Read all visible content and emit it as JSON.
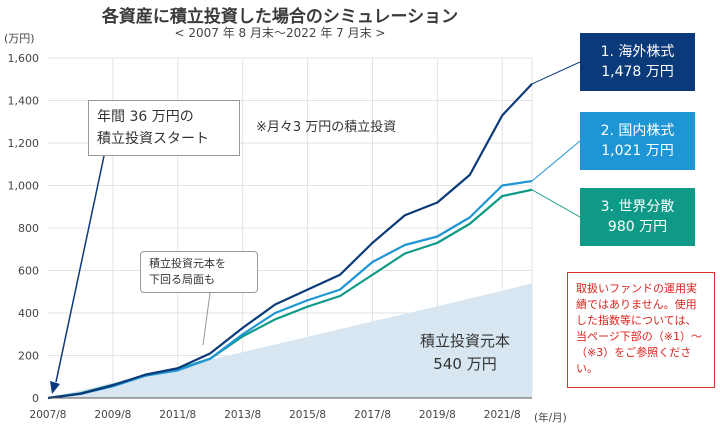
{
  "title": "各資産に積立投資した場合のシミュレーション",
  "subtitle": "< 2007 年 8 月末～2022 年 7 月末 >",
  "ylabel": "(万円)",
  "x_unit": "(年/月)",
  "boxes": [
    {
      "line1": "1. 海外株式",
      "line2": "1,478 万円"
    },
    {
      "line1": "2. 国内株式",
      "line2": "1,021 万円"
    },
    {
      "line1": "3. 世界分散",
      "line2": "980 万円"
    }
  ],
  "callout_start": {
    "line1": "年間 36 万円の",
    "line2": "積立投資スタート"
  },
  "callout_below": {
    "line1": "積立投資元本を",
    "line2": "下回る局面も"
  },
  "monthly_note": "※月々3 万円の積立投資",
  "principal_label": {
    "line1": "積立投資元本",
    "line2": "540 万円"
  },
  "disclaimer": "取扱いファンドの運用実績ではありません。使用した指数等については、当ページ下部の（※1）～（※3）をご参照ください。",
  "colors": {
    "overseas": "#0b3a7a",
    "domestic": "#1e95d4",
    "global": "#0e9a86",
    "principal": "#d7e6f0"
  },
  "chart_data": {
    "type": "area",
    "title": "各資産に積立投資した場合のシミュレーション",
    "subtitle": "< 2007 年 8 月末～2022 年 7 月末 >",
    "ylabel": "(万円)",
    "xlabel": "(年/月)",
    "ylim": [
      0,
      1600
    ],
    "yticks": [
      0,
      200,
      400,
      600,
      800,
      1000,
      1200,
      1400,
      1600
    ],
    "ytick_labels": [
      "0",
      "200",
      "400",
      "600",
      "800",
      "1,000",
      "1,200",
      "1,400",
      "1,600"
    ],
    "xlim": [
      "2007-08",
      "2022-07"
    ],
    "xticks": [
      "2007/8",
      "2009/8",
      "2011/8",
      "2013/8",
      "2015/8",
      "2017/8",
      "2019/8",
      "2021/8"
    ],
    "grid": true,
    "x": [
      "2007-08",
      "2008-08",
      "2009-08",
      "2010-08",
      "2011-08",
      "2012-08",
      "2013-08",
      "2014-08",
      "2015-08",
      "2016-08",
      "2017-08",
      "2018-08",
      "2019-08",
      "2020-08",
      "2021-08",
      "2022-07"
    ],
    "series": [
      {
        "name": "1. 海外株式",
        "values": [
          0,
          20,
          60,
          110,
          140,
          210,
          330,
          440,
          510,
          580,
          730,
          860,
          920,
          1050,
          1330,
          1478
        ]
      },
      {
        "name": "2. 国内株式",
        "values": [
          0,
          20,
          55,
          105,
          130,
          185,
          300,
          400,
          460,
          510,
          640,
          720,
          760,
          850,
          1000,
          1021
        ]
      },
      {
        "name": "3. 世界分散",
        "values": [
          0,
          22,
          62,
          105,
          135,
          185,
          290,
          370,
          430,
          480,
          580,
          680,
          730,
          820,
          950,
          980
        ]
      },
      {
        "name": "積立投資元本",
        "values": [
          0,
          36,
          72,
          108,
          144,
          180,
          216,
          252,
          288,
          324,
          360,
          396,
          432,
          468,
          504,
          540
        ]
      }
    ]
  }
}
